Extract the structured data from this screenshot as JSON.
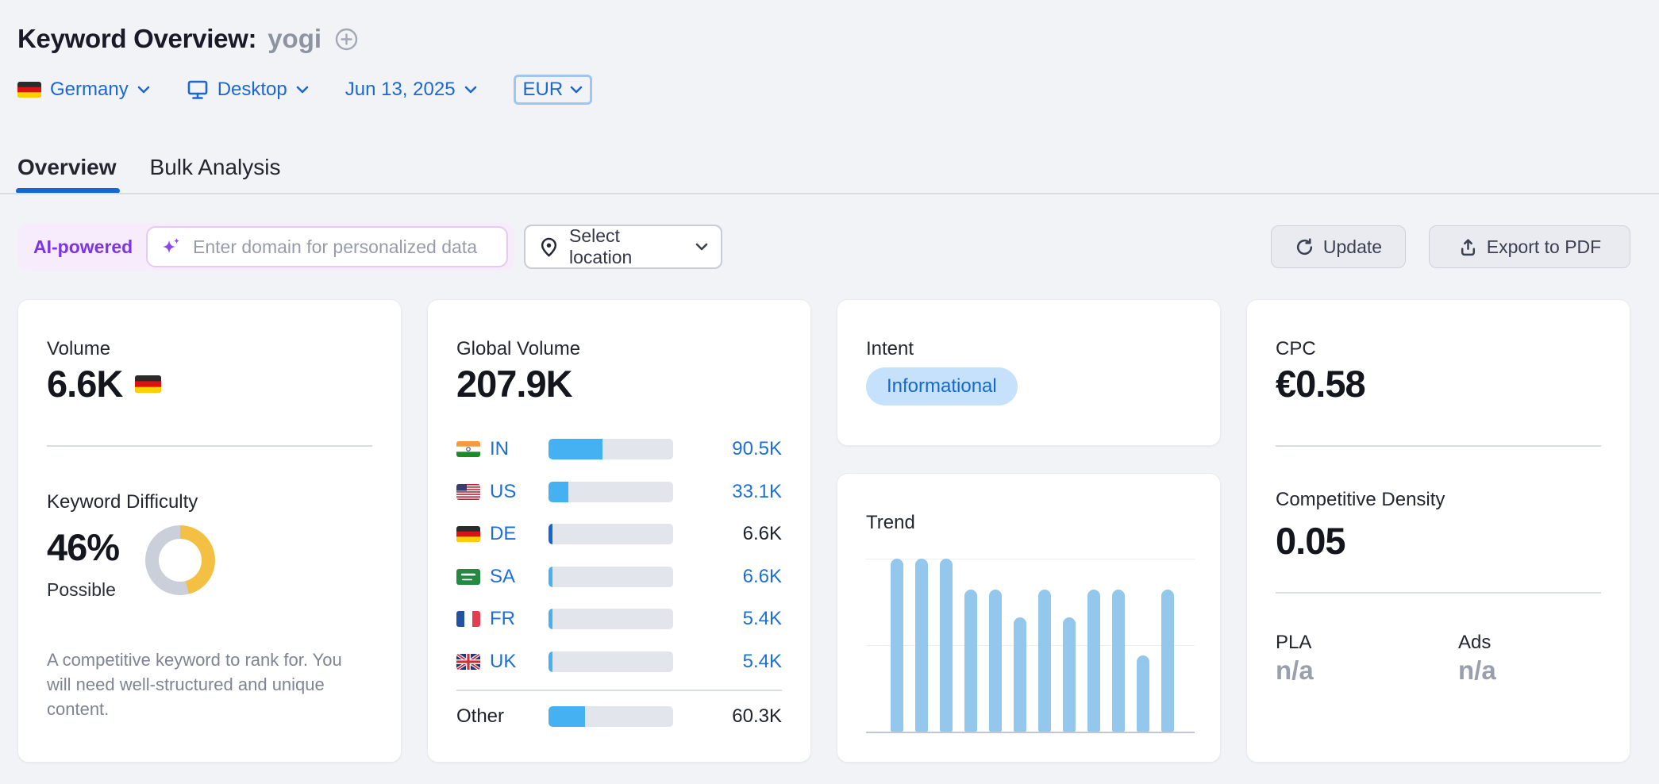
{
  "header": {
    "title": "Keyword Overview:",
    "keyword": "yogi"
  },
  "filters": {
    "country": "Germany",
    "device": "Desktop",
    "date": "Jun 13, 2025",
    "currency": "EUR"
  },
  "tabs": {
    "overview": "Overview",
    "bulk": "Bulk Analysis"
  },
  "toolbar": {
    "ai_badge": "AI-powered",
    "domain_placeholder": "Enter domain for personalized data",
    "select_location": "Select location",
    "update": "Update",
    "export_pdf": "Export to PDF"
  },
  "cards": {
    "volume": {
      "label": "Volume",
      "value": "6.6K",
      "flag": "de"
    },
    "keyword_difficulty": {
      "label": "Keyword Difficulty",
      "value": "46%",
      "percent": 46,
      "level": "Possible",
      "description": "A competitive keyword to rank for. You will need well-structured and unique content."
    },
    "global_volume": {
      "label": "Global Volume",
      "value": "207.9K",
      "rows": [
        {
          "flag": "in",
          "code": "IN",
          "value": "90.5K",
          "share": 0.435,
          "link": true,
          "selected": false
        },
        {
          "flag": "us",
          "code": "US",
          "value": "33.1K",
          "share": 0.159,
          "link": true,
          "selected": false
        },
        {
          "flag": "de",
          "code": "DE",
          "value": "6.6K",
          "share": 0.032,
          "link": false,
          "selected": true
        },
        {
          "flag": "sa",
          "code": "SA",
          "value": "6.6K",
          "share": 0.032,
          "link": true,
          "selected": false
        },
        {
          "flag": "fr",
          "code": "FR",
          "value": "5.4K",
          "share": 0.026,
          "link": true,
          "selected": false
        },
        {
          "flag": "uk",
          "code": "UK",
          "value": "5.4K",
          "share": 0.026,
          "link": true,
          "selected": false
        }
      ],
      "other": {
        "label": "Other",
        "value": "60.3K",
        "share": 0.29
      }
    },
    "intent": {
      "label": "Intent",
      "value": "Informational"
    },
    "trend": {
      "label": "Trend",
      "values": [
        1,
        1,
        1,
        0.82,
        0.82,
        0.66,
        0.82,
        0.66,
        0.82,
        0.82,
        0.44,
        0.82
      ]
    },
    "cpc": {
      "label": "CPC",
      "value": "€0.58"
    },
    "competitive_density": {
      "label": "Competitive Density",
      "value": "0.05"
    },
    "pla": {
      "label": "PLA",
      "value": "n/a"
    },
    "ads": {
      "label": "Ads",
      "value": "n/a"
    }
  },
  "colors": {
    "accent_blue": "#1d6fd8",
    "bar_blue": "#45b1f3",
    "selected_bar_blue": "#1266d6",
    "trend_bar": "#93c7ec",
    "kd_yellow": "#f3c043",
    "kd_gray": "#cbcfda",
    "intent_pill_bg": "#c6e1fc",
    "intent_pill_text": "#1569cd",
    "ai_purple": "#7b36e3"
  },
  "chart_data": [
    {
      "type": "bar",
      "title": "Trend",
      "categories": [
        "1",
        "2",
        "3",
        "4",
        "5",
        "6",
        "7",
        "8",
        "9",
        "10",
        "11",
        "12"
      ],
      "values": [
        1,
        1,
        1,
        0.82,
        0.82,
        0.66,
        0.82,
        0.66,
        0.82,
        0.82,
        0.44,
        0.82
      ],
      "xlabel": "",
      "ylabel": "",
      "ylim": [
        0,
        1
      ],
      "legend": false,
      "note": "12 monthly interest bars, unlabeled axes, gridlines at 0.5 and 1.0"
    },
    {
      "type": "pie",
      "title": "Keyword Difficulty donut",
      "labels": [
        "difficulty",
        "remainder"
      ],
      "values": [
        46,
        54
      ],
      "colors": [
        "#f3c043",
        "#cbcfda"
      ],
      "note": "donut gauge showing 46% Possible"
    },
    {
      "type": "bar",
      "title": "Global Volume by country",
      "categories": [
        "IN",
        "US",
        "DE",
        "SA",
        "FR",
        "UK",
        "Other"
      ],
      "values": [
        90500,
        33100,
        6600,
        6600,
        5400,
        5400,
        60300
      ],
      "value_labels": [
        "90.5K",
        "33.1K",
        "6.6K",
        "6.6K",
        "5.4K",
        "5.4K",
        "60.3K"
      ],
      "total_label": "207.9K"
    }
  ]
}
